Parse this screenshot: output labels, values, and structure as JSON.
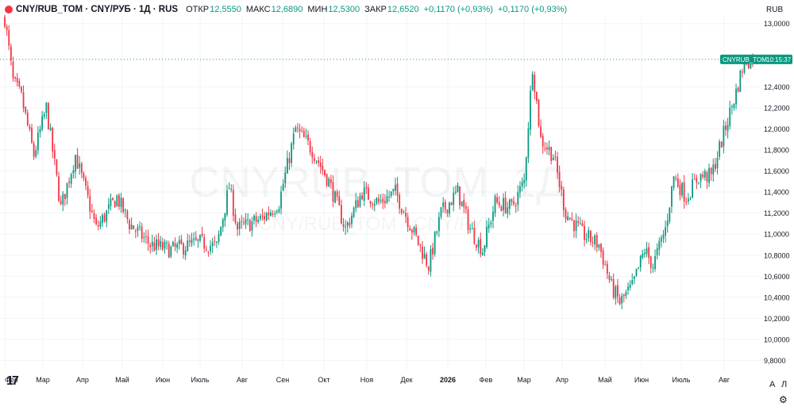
{
  "header": {
    "title": "CNY/RUB_TOM · CNY/РУБ · 1Д · RUS",
    "open_label": "ОТКР",
    "open_value": "12,5550",
    "high_label": "МАКС",
    "high_value": "12,6890",
    "low_label": "МИН",
    "low_value": "12,5300",
    "close_label": "ЗАКР",
    "close_value": "12,6520",
    "change1": "+0,1170 (+0,93%)",
    "change2": "+0,1170 (+0,93%)"
  },
  "currency": "RUB",
  "watermark": {
    "main": "CNYRUB_TOM, 1Д",
    "sub": "CNY/RUB_TOM · CNY/РУБ"
  },
  "price_label": {
    "symbol": "CNYRUB_TOM",
    "countdown": "10:15:37"
  },
  "buttons": {
    "auto": "A",
    "log": "Л",
    "settings_icon": "gear-icon"
  },
  "colors": {
    "up": "#089981",
    "down": "#f23645",
    "text": "#131722",
    "accent": "#089981"
  },
  "chart_data": {
    "type": "candlestick",
    "title": "",
    "xlabel": "",
    "ylabel": "",
    "ylim": [
      9.7,
      13.2
    ],
    "y_ticks": [
      {
        "value": 13.0,
        "label": "13,0000"
      },
      {
        "value": 12.4,
        "label": "12,4000"
      },
      {
        "value": 12.2,
        "label": "12,2000"
      },
      {
        "value": 12.0,
        "label": "12,0000"
      },
      {
        "value": 11.8,
        "label": "11,8000"
      },
      {
        "value": 11.6,
        "label": "11,6000"
      },
      {
        "value": 11.4,
        "label": "11,4000"
      },
      {
        "value": 11.2,
        "label": "11,2000"
      },
      {
        "value": 11.0,
        "label": "11,0000"
      },
      {
        "value": 10.8,
        "label": "10,8000"
      },
      {
        "value": 10.6,
        "label": "10,6000"
      },
      {
        "value": 10.4,
        "label": "10,4000"
      },
      {
        "value": 10.2,
        "label": "10,2000"
      },
      {
        "value": 10.0,
        "label": "10,0000"
      },
      {
        "value": 9.8,
        "label": "9,8000"
      }
    ],
    "x_ticks": [
      "Фев",
      "Мар",
      "Апр",
      "Май",
      "Июн",
      "Июль",
      "Авг",
      "Сен",
      "Окт",
      "Ноя",
      "Дек",
      "2026",
      "Фев",
      "Мар",
      "Апр",
      "Май",
      "Июн",
      "Июль",
      "Авг"
    ],
    "last_price": 12.652,
    "last_price_label": "12,6520",
    "trajectory": [
      [
        0,
        13.05
      ],
      [
        4,
        12.45
      ],
      [
        8,
        12.3
      ],
      [
        14,
        11.75
      ],
      [
        20,
        12.2
      ],
      [
        27,
        11.25
      ],
      [
        34,
        11.75
      ],
      [
        44,
        11.05
      ],
      [
        54,
        11.35
      ],
      [
        60,
        11.1
      ],
      [
        70,
        10.9
      ],
      [
        80,
        10.85
      ],
      [
        94,
        10.92
      ],
      [
        102,
        10.88
      ],
      [
        108,
        11.45
      ],
      [
        112,
        11.05
      ],
      [
        124,
        11.15
      ],
      [
        132,
        11.3
      ],
      [
        140,
        12.0
      ],
      [
        148,
        11.8
      ],
      [
        156,
        11.5
      ],
      [
        164,
        11.05
      ],
      [
        172,
        11.4
      ],
      [
        180,
        11.3
      ],
      [
        188,
        11.4
      ],
      [
        196,
        11.05
      ],
      [
        204,
        10.7
      ],
      [
        210,
        11.2
      ],
      [
        218,
        11.4
      ],
      [
        224,
        11.05
      ],
      [
        230,
        10.85
      ],
      [
        236,
        11.3
      ],
      [
        244,
        11.25
      ],
      [
        250,
        11.5
      ],
      [
        254,
        12.6
      ],
      [
        258,
        11.9
      ],
      [
        264,
        11.75
      ],
      [
        270,
        11.2
      ],
      [
        278,
        11.0
      ],
      [
        286,
        10.9
      ],
      [
        292,
        10.5
      ],
      [
        296,
        10.35
      ],
      [
        302,
        10.5
      ],
      [
        308,
        10.85
      ],
      [
        312,
        10.7
      ],
      [
        318,
        11.05
      ],
      [
        322,
        11.55
      ],
      [
        328,
        11.35
      ],
      [
        334,
        11.55
      ],
      [
        340,
        11.55
      ],
      [
        346,
        11.95
      ],
      [
        352,
        12.35
      ],
      [
        356,
        12.652
      ]
    ]
  }
}
